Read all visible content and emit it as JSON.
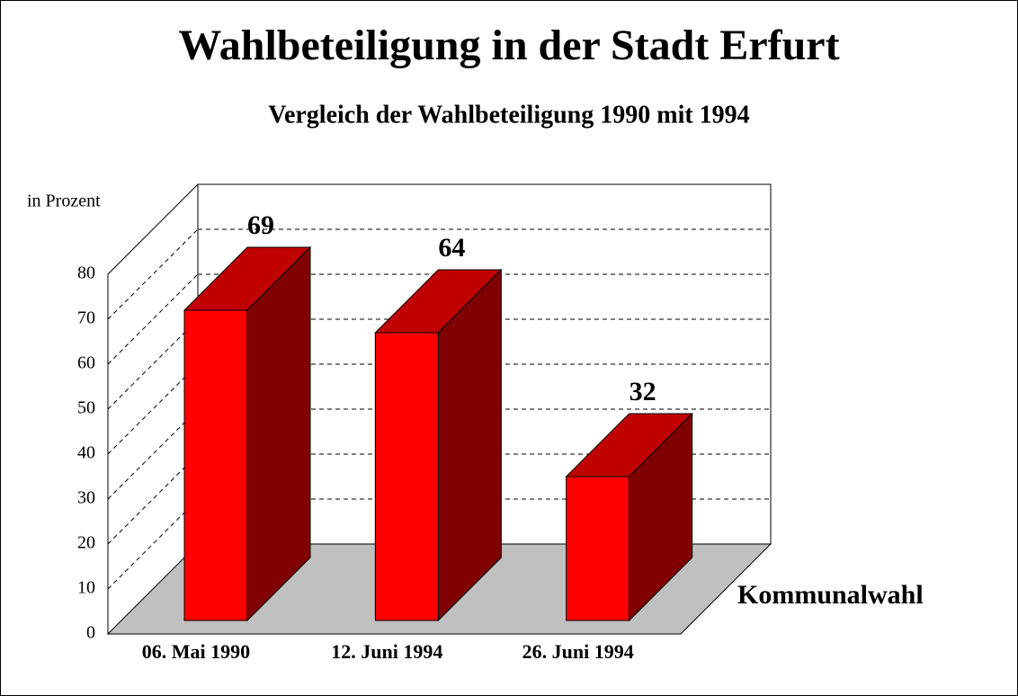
{
  "chart_data": {
    "type": "bar3d",
    "title": "Wahlbeteiligung in der Stadt Erfurt",
    "subtitle": "Vergleich der Wahlbeteiligung 1990 mit 1994",
    "y_label": "in Prozent",
    "annotation": "Kommunalwahl",
    "categories": [
      "06. Mai 1990",
      "12. Juni 1994",
      "26. Juni 1994"
    ],
    "values": [
      69,
      64,
      32
    ],
    "colors": {
      "front": "#ff0000",
      "top": "#c00000",
      "side": "#800000",
      "floor": "#c0c0c0"
    },
    "ylim": [
      0,
      80
    ],
    "yticks": [
      0,
      10,
      20,
      30,
      40,
      50,
      60,
      70,
      80
    ],
    "grid": true
  }
}
